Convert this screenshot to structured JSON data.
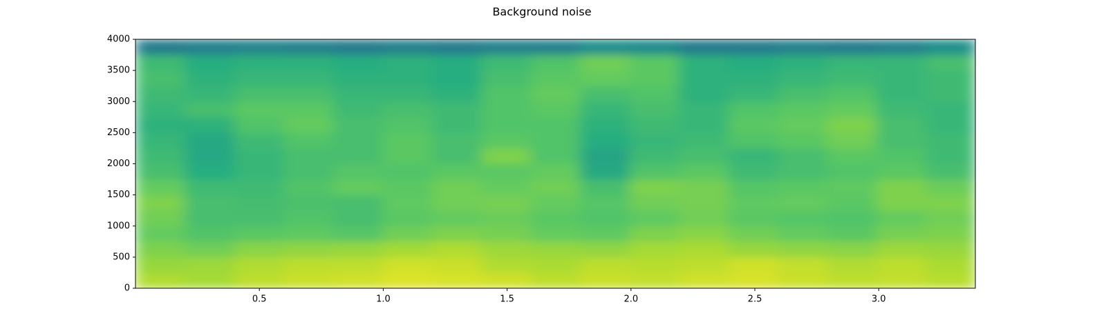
{
  "chart_data": {
    "type": "heatmap",
    "title": "Background noise",
    "colormap": "viridis",
    "xlim": [
      0,
      3.39
    ],
    "xticks": [
      0.5,
      1.0,
      1.5,
      2.0,
      2.5,
      3.0
    ],
    "ylim": [
      0,
      4000
    ],
    "yticks": [
      0,
      500,
      1000,
      1500,
      2000,
      2500,
      3000,
      3500,
      4000
    ],
    "z": [
      [
        0.88,
        0.86,
        0.9,
        0.92,
        0.93,
        0.95,
        0.94,
        0.93,
        0.9,
        0.92,
        0.91,
        0.93,
        0.94,
        0.92,
        0.9,
        0.91,
        0.89
      ],
      [
        0.84,
        0.85,
        0.88,
        0.9,
        0.9,
        0.93,
        0.92,
        0.88,
        0.87,
        0.9,
        0.89,
        0.9,
        0.93,
        0.91,
        0.88,
        0.9,
        0.87
      ],
      [
        0.8,
        0.78,
        0.82,
        0.83,
        0.84,
        0.86,
        0.88,
        0.85,
        0.84,
        0.83,
        0.86,
        0.87,
        0.84,
        0.83,
        0.82,
        0.85,
        0.84
      ],
      [
        0.76,
        0.72,
        0.74,
        0.75,
        0.73,
        0.78,
        0.8,
        0.79,
        0.76,
        0.75,
        0.8,
        0.82,
        0.78,
        0.76,
        0.74,
        0.79,
        0.8
      ],
      [
        0.78,
        0.7,
        0.7,
        0.72,
        0.7,
        0.74,
        0.76,
        0.77,
        0.74,
        0.72,
        0.75,
        0.78,
        0.74,
        0.73,
        0.72,
        0.76,
        0.78
      ],
      [
        0.8,
        0.7,
        0.69,
        0.71,
        0.7,
        0.75,
        0.78,
        0.79,
        0.76,
        0.73,
        0.78,
        0.79,
        0.75,
        0.76,
        0.74,
        0.8,
        0.8
      ],
      [
        0.76,
        0.68,
        0.68,
        0.72,
        0.76,
        0.74,
        0.78,
        0.76,
        0.78,
        0.7,
        0.8,
        0.79,
        0.73,
        0.74,
        0.75,
        0.8,
        0.77
      ],
      [
        0.7,
        0.62,
        0.66,
        0.7,
        0.73,
        0.72,
        0.74,
        0.74,
        0.76,
        0.6,
        0.72,
        0.74,
        0.68,
        0.7,
        0.72,
        0.74,
        0.7
      ],
      [
        0.68,
        0.6,
        0.66,
        0.7,
        0.7,
        0.74,
        0.7,
        0.8,
        0.72,
        0.58,
        0.68,
        0.7,
        0.66,
        0.7,
        0.74,
        0.72,
        0.68
      ],
      [
        0.66,
        0.6,
        0.68,
        0.72,
        0.7,
        0.74,
        0.7,
        0.74,
        0.72,
        0.62,
        0.66,
        0.68,
        0.72,
        0.74,
        0.78,
        0.7,
        0.68
      ],
      [
        0.64,
        0.64,
        0.72,
        0.76,
        0.7,
        0.72,
        0.68,
        0.72,
        0.72,
        0.64,
        0.68,
        0.66,
        0.74,
        0.76,
        0.8,
        0.7,
        0.66
      ],
      [
        0.66,
        0.7,
        0.74,
        0.74,
        0.68,
        0.7,
        0.68,
        0.72,
        0.74,
        0.66,
        0.7,
        0.66,
        0.72,
        0.74,
        0.76,
        0.68,
        0.66
      ],
      [
        0.68,
        0.66,
        0.7,
        0.7,
        0.66,
        0.66,
        0.64,
        0.72,
        0.76,
        0.7,
        0.72,
        0.64,
        0.66,
        0.7,
        0.72,
        0.66,
        0.68
      ],
      [
        0.7,
        0.64,
        0.66,
        0.66,
        0.64,
        0.64,
        0.62,
        0.7,
        0.74,
        0.76,
        0.74,
        0.64,
        0.64,
        0.66,
        0.68,
        0.66,
        0.68
      ],
      [
        0.68,
        0.62,
        0.64,
        0.64,
        0.62,
        0.64,
        0.62,
        0.68,
        0.72,
        0.78,
        0.74,
        0.64,
        0.62,
        0.64,
        0.66,
        0.66,
        0.7
      ],
      [
        0.42,
        0.44,
        0.45,
        0.44,
        0.42,
        0.44,
        0.42,
        0.44,
        0.44,
        0.5,
        0.48,
        0.42,
        0.42,
        0.44,
        0.42,
        0.44,
        0.5
      ]
    ]
  }
}
